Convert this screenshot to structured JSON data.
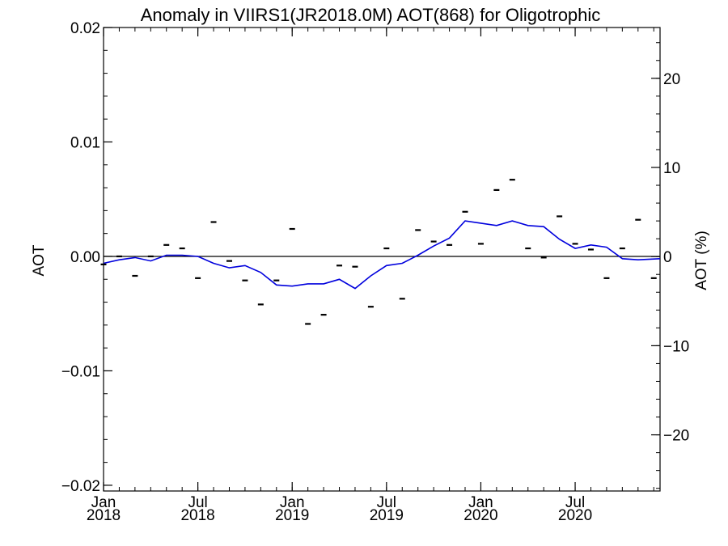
{
  "chart_data": {
    "type": "line",
    "title": "Anomaly in VIIRS1(JR2018.0M) AOT(868) for Oligotrophic",
    "ylabel": "AOT",
    "y2label": "AOT (%)",
    "ylim": [
      -0.0205,
      0.02
    ],
    "y2lim": [
      -26.3,
      25.7
    ],
    "xlim": [
      2018.0,
      2020.95
    ],
    "yticks": [
      {
        "value": 0.02,
        "label": "0.02"
      },
      {
        "value": 0.01,
        "label": "0.01"
      },
      {
        "value": 0.0,
        "label": "0.00"
      },
      {
        "value": -0.01,
        "label": "−0.01"
      },
      {
        "value": -0.02,
        "label": "−0.02"
      }
    ],
    "y2ticks": [
      {
        "value": 20,
        "label": "20"
      },
      {
        "value": 10,
        "label": "10"
      },
      {
        "value": 0,
        "label": "0"
      },
      {
        "value": -10,
        "label": "−10"
      },
      {
        "value": -20,
        "label": "−20"
      }
    ],
    "xticks": [
      {
        "value": 2018.0,
        "month": "Jan",
        "year": "2018"
      },
      {
        "value": 2018.5,
        "month": "Jul",
        "year": "2018"
      },
      {
        "value": 2019.0,
        "month": "Jan",
        "year": "2019"
      },
      {
        "value": 2019.5,
        "month": "Jul",
        "year": "2019"
      },
      {
        "value": 2020.0,
        "month": "Jan",
        "year": "2020"
      },
      {
        "value": 2020.5,
        "month": "Jul",
        "year": "2020"
      }
    ],
    "series": [
      {
        "style": "line",
        "color": "#0000dd",
        "x": [
          2018.0,
          2018.0833,
          2018.1667,
          2018.25,
          2018.3333,
          2018.4167,
          2018.5,
          2018.5833,
          2018.6667,
          2018.75,
          2018.8333,
          2018.9167,
          2019.0,
          2019.0833,
          2019.1667,
          2019.25,
          2019.3333,
          2019.4167,
          2019.5,
          2019.5833,
          2019.6667,
          2019.75,
          2019.8333,
          2019.9167,
          2020.0,
          2020.0833,
          2020.1667,
          2020.25,
          2020.3333,
          2020.4167,
          2020.5,
          2020.5833,
          2020.6667,
          2020.75,
          2020.8333,
          2020.95
        ],
        "values": [
          -0.0006,
          -0.0003,
          -0.0001,
          -0.0004,
          0.0001,
          0.0001,
          0.0,
          -0.0006,
          -0.001,
          -0.0008,
          -0.0014,
          -0.0025,
          -0.0026,
          -0.0024,
          -0.0024,
          -0.002,
          -0.0028,
          -0.0017,
          -0.0008,
          -0.0006,
          0.0001,
          0.0009,
          0.0016,
          0.0031,
          0.0029,
          0.0027,
          0.0031,
          0.0027,
          0.0026,
          0.0015,
          0.0007,
          0.001,
          0.0008,
          -0.0002,
          -0.0003,
          -0.0002
        ]
      },
      {
        "style": "dash-marker",
        "color": "#000000",
        "x": [
          2018.0,
          2018.0833,
          2018.1667,
          2018.25,
          2018.3333,
          2018.4167,
          2018.5,
          2018.5833,
          2018.6667,
          2018.75,
          2018.8333,
          2018.9167,
          2019.0,
          2019.0833,
          2019.1667,
          2019.25,
          2019.3333,
          2019.4167,
          2019.5,
          2019.5833,
          2019.6667,
          2019.75,
          2019.8333,
          2019.9167,
          2020.0,
          2020.0833,
          2020.1667,
          2020.25,
          2020.3333,
          2020.4167,
          2020.5,
          2020.5833,
          2020.6667,
          2020.75,
          2020.8333,
          2020.9167
        ],
        "values": [
          -0.0007,
          0.0,
          -0.0017,
          0.0,
          0.001,
          0.0007,
          -0.0019,
          0.003,
          -0.0004,
          -0.0021,
          -0.0042,
          -0.0021,
          0.0024,
          -0.0059,
          -0.0051,
          -0.0008,
          -0.0009,
          -0.0044,
          0.0007,
          -0.0037,
          0.0023,
          0.0013,
          0.001,
          0.0039,
          0.0011,
          0.0058,
          0.0067,
          0.0007,
          -0.0001,
          0.0035,
          0.0011,
          0.0006,
          -0.0019,
          0.0007,
          0.0032,
          -0.0019
        ]
      }
    ]
  }
}
